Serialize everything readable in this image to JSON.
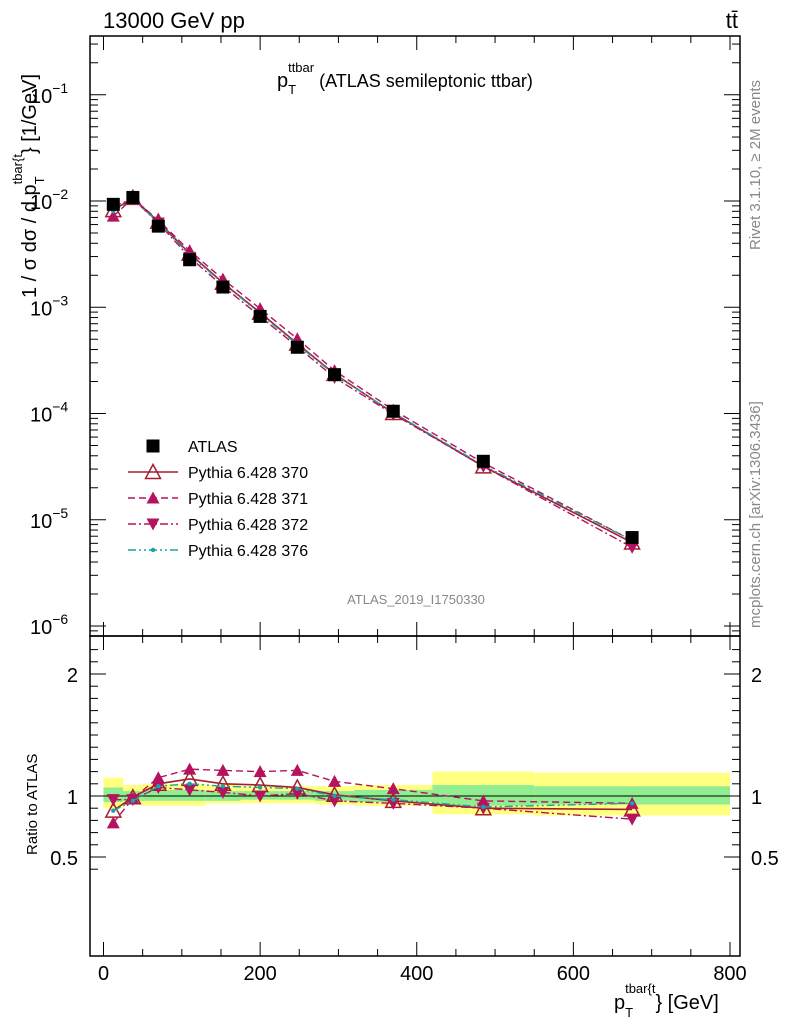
{
  "header": {
    "energy_label": "13000 GeV pp",
    "process_label": "tt̄"
  },
  "side_labels": {
    "rivet": "Rivet 3.1.10, ≥ 2M events",
    "mcplots": "mcplots.cern.ch [arXiv:1306.3436]"
  },
  "watermark": "ATLAS_2019_I1750330",
  "plot_title": {
    "base": "p",
    "sub": "T",
    "sup": "ttbar",
    "rest": " (ATLAS semileptonic ttbar)"
  },
  "axis_labels": {
    "y_main": "1 / σ dσ / d p",
    "y_main_sub": "T",
    "y_main_sup": "tbar{t",
    "y_main_tail": "} [1/GeV]",
    "y_ratio": "Ratio to ATLAS",
    "x": "p",
    "x_sub": "T",
    "x_sup": "tbar{t",
    "x_tail": "} [GeV]"
  },
  "colors": {
    "data": "#000000",
    "p370": "#a31f2d",
    "p371": "#b5135f",
    "p372": "#b5135f",
    "p376": "#1aa3a3",
    "band_yellow": "#ffff80",
    "band_green": "#90ee90"
  },
  "legend": [
    {
      "label": "ATLAS"
    },
    {
      "label": "Pythia 6.428 370"
    },
    {
      "label": "Pythia 6.428 371"
    },
    {
      "label": "Pythia 6.428 372"
    },
    {
      "label": "Pythia 6.428 376"
    }
  ],
  "chart_data": {
    "type": "scatter",
    "x_range": [
      -15,
      800
    ],
    "y_range_main": [
      8e-07,
      0.4
    ],
    "y_scale_main": "log",
    "y_range_ratio": [
      0.38,
      2.3
    ],
    "x_ticks": [
      "0",
      "200",
      "400",
      "600",
      "800"
    ],
    "y_ticks_main": [
      {
        "base": "10",
        "exp": "−1"
      },
      {
        "base": "10",
        "exp": "−2"
      },
      {
        "base": "10",
        "exp": "−3"
      },
      {
        "base": "10",
        "exp": "−4"
      },
      {
        "base": "10",
        "exp": "−5"
      },
      {
        "base": "10",
        "exp": "−6"
      }
    ],
    "y_ticks_ratio": [
      "0.5",
      "1",
      "2"
    ],
    "legend_position": "left-middle",
    "bins": [
      [
        0,
        25
      ],
      [
        25,
        50
      ],
      [
        50,
        90
      ],
      [
        90,
        130
      ],
      [
        130,
        175
      ],
      [
        175,
        225
      ],
      [
        225,
        270
      ],
      [
        270,
        320
      ],
      [
        320,
        420
      ],
      [
        420,
        550
      ],
      [
        550,
        800
      ]
    ],
    "x": [
      12.5,
      37.5,
      70,
      110,
      152.5,
      200,
      247.5,
      295,
      370,
      485,
      675
    ],
    "atlas": [
      0.0093,
      0.0108,
      0.0058,
      0.0028,
      0.00155,
      0.00082,
      0.00042,
      0.000232,
      0.000105,
      3.55e-05,
      6.8e-06
    ],
    "series": [
      {
        "name": "Pythia 6.428 370",
        "values": [
          0.0082,
          0.0107,
          0.0064,
          0.0032,
          0.0017,
          0.00089,
          0.000455,
          0.000236,
          0.000101,
          3.18e-05,
          6.1e-06
        ]
      },
      {
        "name": "Pythia 6.428 371",
        "values": [
          0.0072,
          0.0106,
          0.0066,
          0.0034,
          0.00184,
          0.00097,
          0.000505,
          0.000253,
          0.000108,
          3.43e-05,
          6.4e-06
        ]
      },
      {
        "name": "Pythia 6.428 372",
        "values": [
          0.0089,
          0.0105,
          0.0062,
          0.00295,
          0.00158,
          0.00082,
          0.000425,
          0.000218,
          9.85e-05,
          3.18e-05,
          5.5e-06
        ]
      },
      {
        "name": "Pythia 6.428 376",
        "values": [
          0.008,
          0.0104,
          0.0063,
          0.0031,
          0.00168,
          0.00087,
          0.000445,
          0.000232,
          0.000102,
          3.25e-05,
          6.4e-06
        ]
      }
    ],
    "ratio_series": [
      {
        "name": "Pythia 6.428 370",
        "values": [
          0.88,
          0.99,
          1.1,
          1.14,
          1.1,
          1.09,
          1.07,
          1.01,
          0.96,
          0.9,
          0.89
        ]
      },
      {
        "name": "Pythia 6.428 371",
        "values": [
          0.78,
          0.98,
          1.15,
          1.22,
          1.21,
          1.2,
          1.21,
          1.12,
          1.06,
          0.96,
          0.94
        ]
      },
      {
        "name": "Pythia 6.428 372",
        "values": [
          0.97,
          0.97,
          1.07,
          1.05,
          1.03,
          1.0,
          1.02,
          0.96,
          0.94,
          0.9,
          0.81
        ]
      },
      {
        "name": "Pythia 6.428 376",
        "values": [
          0.88,
          0.96,
          1.08,
          1.1,
          1.08,
          1.07,
          1.06,
          1.0,
          0.97,
          0.91,
          0.94
        ]
      }
    ],
    "ratio_band_green": [
      [
        0.95,
        1.07
      ],
      [
        0.96,
        1.04
      ],
      [
        0.96,
        1.05
      ],
      [
        0.96,
        1.05
      ],
      [
        0.96,
        1.04
      ],
      [
        0.97,
        1.04
      ],
      [
        0.97,
        1.04
      ],
      [
        0.96,
        1.04
      ],
      [
        0.95,
        1.05
      ],
      [
        0.92,
        1.09
      ],
      [
        0.93,
        1.08
      ]
    ],
    "ratio_band_yellow": [
      [
        0.9,
        1.15
      ],
      [
        0.93,
        1.09
      ],
      [
        0.92,
        1.1
      ],
      [
        0.92,
        1.1
      ],
      [
        0.94,
        1.09
      ],
      [
        0.94,
        1.08
      ],
      [
        0.94,
        1.08
      ],
      [
        0.93,
        1.08
      ],
      [
        0.92,
        1.09
      ],
      [
        0.85,
        1.2
      ],
      [
        0.84,
        1.19
      ]
    ]
  }
}
